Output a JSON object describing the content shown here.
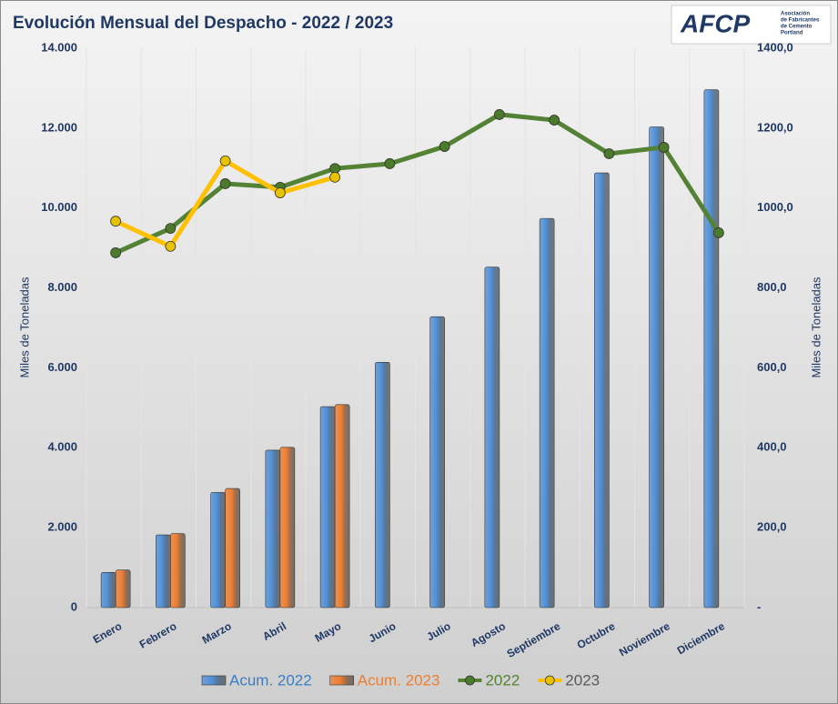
{
  "chart_data": {
    "type": "bar_line",
    "title": "Evolución Mensual del Despacho - 2022 / 2023",
    "logo": {
      "text": "AFCP",
      "subtitle": [
        "Asociación",
        "de Fabricantes",
        "de Cemento",
        "Portland"
      ]
    },
    "ylabel": "Miles de Toneladas",
    "y2label": "Miles de Toneladas",
    "categories": [
      "Enero",
      "Febrero",
      "Marzo",
      "Abril",
      "Mayo",
      "Junio",
      "Julio",
      "Agosto",
      "Septiembre",
      "Octubre",
      "Noviembre",
      "Diciembre"
    ],
    "series": [
      {
        "name": "Acum. 2022",
        "kind": "bar",
        "color": "#4f8fd6",
        "label_color": "#3b7dc4",
        "values": [
          880,
          1820,
          2880,
          3940,
          5030,
          6140,
          7280,
          8520,
          9740,
          10880,
          12030,
          12960
        ]
      },
      {
        "name": "Acum. 2023",
        "kind": "bar",
        "color": "#ed7d31",
        "label_color": "#ed7d31",
        "values": [
          940,
          1850,
          2980,
          4010,
          5080,
          null,
          null,
          null,
          null,
          null,
          null,
          null
        ]
      },
      {
        "name": "2022",
        "kind": "line",
        "axis": "y2",
        "color": "#548235",
        "marker_color": "#4a7a2a",
        "label_color": "#548235",
        "values": [
          888,
          949,
          1061,
          1052,
          1099,
          1111,
          1154,
          1234,
          1220,
          1136,
          1152,
          938
        ]
      },
      {
        "name": "2023",
        "kind": "line",
        "axis": "y2",
        "color": "#ffc000",
        "marker_color": "#e6c200",
        "label_color": "#595959",
        "values": [
          967,
          904,
          1118,
          1038,
          1077,
          null,
          null,
          null,
          null,
          null,
          null,
          null
        ]
      }
    ],
    "ylim": [
      0,
      14000
    ],
    "yticks": [
      0,
      {
        "value": 2000,
        "label": "2.000"
      },
      {
        "value": 4000,
        "label": "4.000"
      },
      {
        "value": 6000,
        "label": "6.000"
      },
      {
        "value": 8000,
        "label": "8.000"
      },
      {
        "value": 10000,
        "label": "10.000"
      },
      {
        "value": 12000,
        "label": "12.000"
      },
      {
        "value": 14000,
        "label": "14.000"
      }
    ],
    "y2lim": [
      0,
      1400
    ],
    "y2ticks": [
      {
        "value": 0,
        "label": "-"
      },
      {
        "value": 200,
        "label": "200,0"
      },
      {
        "value": 400,
        "label": "400,0"
      },
      {
        "value": 600,
        "label": "600,0"
      },
      {
        "value": 800,
        "label": "800,0"
      },
      {
        "value": 1000,
        "label": "1000,0"
      },
      {
        "value": 1200,
        "label": "1200,0"
      },
      {
        "value": 1400,
        "label": "1400,0"
      }
    ],
    "legend": "bottom"
  }
}
